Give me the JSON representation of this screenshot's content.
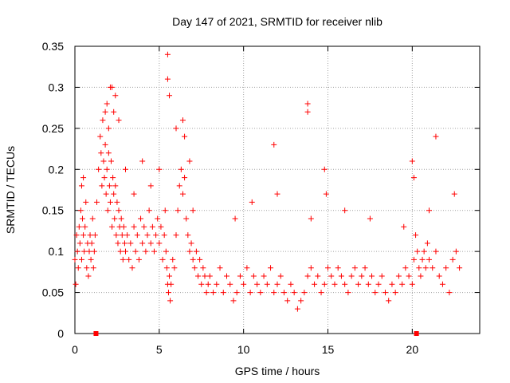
{
  "chart_data": {
    "type": "scatter",
    "title": "Day 147 of 2021, SRMTID for receiver nlib",
    "xlabel": "GPS time / hours",
    "ylabel": "SRMTID / TECUs",
    "xlim": [
      0,
      24
    ],
    "ylim": [
      0,
      0.35
    ],
    "xticks": [
      0,
      5,
      10,
      15,
      20
    ],
    "xtick_labels": [
      "0",
      "5",
      "10",
      "15",
      "20"
    ],
    "yticks": [
      0,
      0.05,
      0.1,
      0.15,
      0.2,
      0.25,
      0.3,
      0.35
    ],
    "ytick_labels": [
      "0",
      "0.05",
      "0.1",
      "0.15",
      "0.2",
      "0.25",
      "0.3",
      "0.35"
    ],
    "grid": true,
    "marker": "+",
    "color": "#ff0000",
    "zero_markers_x": [
      1.25,
      20.25
    ],
    "series": [
      {
        "name": "SRMTID",
        "x": [
          0.0,
          0.05,
          0.1,
          0.15,
          0.2,
          0.25,
          0.3,
          0.35,
          0.4,
          0.45,
          0.5,
          0.55,
          0.6,
          0.65,
          0.7,
          0.75,
          0.8,
          0.85,
          0.9,
          0.95,
          1.0,
          1.05,
          1.1,
          1.15,
          1.2,
          1.3,
          1.4,
          1.5,
          1.55,
          1.6,
          1.65,
          1.7,
          1.75,
          1.8,
          1.85,
          1.9,
          1.95,
          2.0,
          2.05,
          2.1,
          2.15,
          2.2,
          2.25,
          2.3,
          2.35,
          2.4,
          2.45,
          2.5,
          2.55,
          2.6,
          2.65,
          2.7,
          2.75,
          2.8,
          2.85,
          2.9,
          2.95,
          3.0,
          3.1,
          3.2,
          3.3,
          3.4,
          3.5,
          3.6,
          3.7,
          3.8,
          3.9,
          4.0,
          4.1,
          4.2,
          4.3,
          4.4,
          4.5,
          4.6,
          4.7,
          4.8,
          4.9,
          5.0,
          5.1,
          5.2,
          5.3,
          5.35,
          5.4,
          5.45,
          5.5,
          5.55,
          5.6,
          5.65,
          5.7,
          5.8,
          5.9,
          6.0,
          6.1,
          6.2,
          6.3,
          6.4,
          6.5,
          6.6,
          6.7,
          6.8,
          6.9,
          7.0,
          7.1,
          7.2,
          7.3,
          7.4,
          7.5,
          7.6,
          7.7,
          7.8,
          7.9,
          8.0,
          8.2,
          8.4,
          8.6,
          8.8,
          9.0,
          9.2,
          9.4,
          9.6,
          9.8,
          10.0,
          10.2,
          10.4,
          10.6,
          10.8,
          11.0,
          11.2,
          11.4,
          11.6,
          11.8,
          12.0,
          12.2,
          12.4,
          12.6,
          12.8,
          13.0,
          13.2,
          13.4,
          13.6,
          13.8,
          14.0,
          14.2,
          14.4,
          14.6,
          14.8,
          15.0,
          15.2,
          15.4,
          15.6,
          15.8,
          16.0,
          16.2,
          16.4,
          16.6,
          16.8,
          17.0,
          17.2,
          17.4,
          17.6,
          17.8,
          18.0,
          18.2,
          18.4,
          18.6,
          18.8,
          19.0,
          19.2,
          19.4,
          19.6,
          19.8,
          20.0,
          20.1,
          20.2,
          20.3,
          20.4,
          20.5,
          20.6,
          20.7,
          20.8,
          20.9,
          21.0,
          21.2,
          21.4,
          21.6,
          21.8,
          22.0,
          22.2,
          22.4,
          22.6,
          22.8,
          1.8,
          1.9,
          2.0,
          2.2,
          2.4,
          2.6,
          5.5,
          5.5,
          5.6,
          13.8,
          13.8,
          11.8,
          21.4,
          20.0,
          20.1,
          14.8,
          14.9,
          6.4,
          6.5,
          6.8,
          0.4,
          0.5,
          2.1,
          2.3,
          3.0,
          3.5,
          4.0,
          4.5,
          5.0,
          6.0,
          7.0,
          9.5,
          10.5,
          12.0,
          14.0,
          16.0,
          17.5,
          19.5,
          21.0,
          22.5
        ],
        "y": [
          0.09,
          0.06,
          0.12,
          0.1,
          0.08,
          0.13,
          0.11,
          0.15,
          0.09,
          0.14,
          0.12,
          0.1,
          0.13,
          0.16,
          0.08,
          0.11,
          0.07,
          0.1,
          0.12,
          0.09,
          0.11,
          0.14,
          0.08,
          0.1,
          0.12,
          0.16,
          0.2,
          0.24,
          0.22,
          0.18,
          0.26,
          0.21,
          0.19,
          0.23,
          0.17,
          0.2,
          0.15,
          0.22,
          0.18,
          0.16,
          0.21,
          0.13,
          0.19,
          0.17,
          0.14,
          0.18,
          0.12,
          0.16,
          0.11,
          0.15,
          0.13,
          0.1,
          0.14,
          0.12,
          0.09,
          0.13,
          0.11,
          0.1,
          0.12,
          0.09,
          0.11,
          0.08,
          0.13,
          0.1,
          0.12,
          0.09,
          0.14,
          0.11,
          0.13,
          0.1,
          0.12,
          0.15,
          0.11,
          0.13,
          0.1,
          0.12,
          0.14,
          0.11,
          0.13,
          0.09,
          0.12,
          0.15,
          0.1,
          0.08,
          0.06,
          0.05,
          0.07,
          0.04,
          0.06,
          0.09,
          0.08,
          0.12,
          0.15,
          0.18,
          0.2,
          0.17,
          0.19,
          0.14,
          0.12,
          0.1,
          0.11,
          0.09,
          0.08,
          0.1,
          0.07,
          0.09,
          0.06,
          0.08,
          0.07,
          0.05,
          0.06,
          0.07,
          0.05,
          0.06,
          0.08,
          0.05,
          0.07,
          0.06,
          0.04,
          0.05,
          0.07,
          0.06,
          0.08,
          0.05,
          0.07,
          0.06,
          0.05,
          0.07,
          0.06,
          0.08,
          0.05,
          0.06,
          0.07,
          0.05,
          0.04,
          0.06,
          0.05,
          0.03,
          0.04,
          0.05,
          0.07,
          0.08,
          0.06,
          0.07,
          0.05,
          0.06,
          0.08,
          0.07,
          0.06,
          0.08,
          0.07,
          0.06,
          0.05,
          0.07,
          0.08,
          0.06,
          0.07,
          0.08,
          0.06,
          0.07,
          0.05,
          0.06,
          0.07,
          0.05,
          0.04,
          0.06,
          0.05,
          0.07,
          0.06,
          0.08,
          0.07,
          0.06,
          0.09,
          0.12,
          0.1,
          0.08,
          0.07,
          0.09,
          0.1,
          0.08,
          0.11,
          0.09,
          0.08,
          0.1,
          0.07,
          0.06,
          0.08,
          0.05,
          0.09,
          0.1,
          0.08,
          0.27,
          0.28,
          0.25,
          0.3,
          0.29,
          0.26,
          0.34,
          0.31,
          0.29,
          0.28,
          0.27,
          0.23,
          0.24,
          0.21,
          0.19,
          0.2,
          0.17,
          0.26,
          0.24,
          0.21,
          0.18,
          0.19,
          0.3,
          0.27,
          0.2,
          0.17,
          0.21,
          0.18,
          0.2,
          0.25,
          0.15,
          0.14,
          0.16,
          0.17,
          0.14,
          0.15,
          0.14,
          0.13,
          0.15,
          0.17
        ]
      }
    ]
  }
}
